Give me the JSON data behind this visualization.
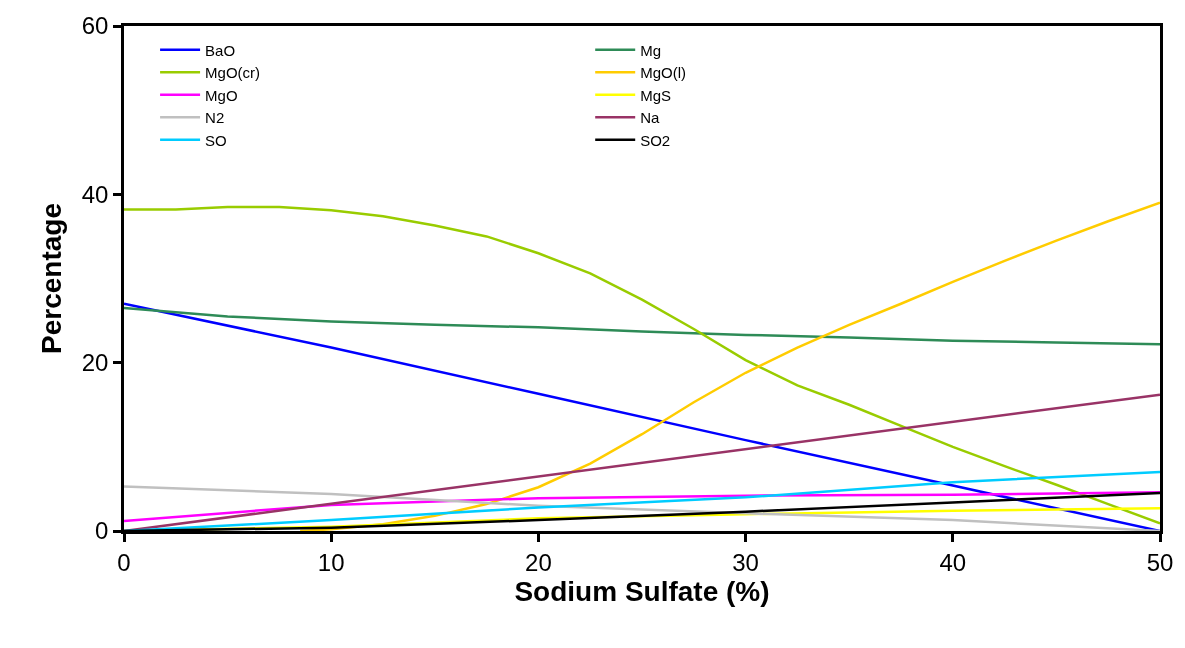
{
  "chart_data": {
    "type": "line",
    "xlabel": "Sodium Sulfate (%)",
    "ylabel": "Percentage",
    "xlim": [
      0,
      50
    ],
    "xticks": [
      0,
      10,
      20,
      30,
      40,
      50
    ],
    "ylim": [
      0,
      60
    ],
    "yticks": [
      0,
      20,
      40,
      60
    ],
    "grid": false,
    "legend": "top left",
    "marker": "none",
    "line_style": "solid",
    "series": [
      {
        "name": "BaO",
        "color": "#0000ff",
        "x": [
          0,
          10,
          20,
          30,
          40,
          50
        ],
        "values": [
          27,
          21.8,
          16.3,
          10.8,
          5.4,
          0
        ]
      },
      {
        "name": "Mg",
        "color": "#2e8b57",
        "x": [
          0,
          5,
          10,
          15,
          20,
          25,
          30,
          35,
          40,
          45,
          50
        ],
        "values": [
          26.5,
          25.5,
          24.9,
          24.5,
          24.2,
          23.7,
          23.3,
          23,
          22.6,
          22.4,
          22.2
        ]
      },
      {
        "name": "MgO(cr)",
        "color": "#99cc00",
        "x": [
          0,
          2.5,
          5,
          7.5,
          10,
          12.5,
          15,
          17.5,
          20,
          22.5,
          25,
          27.5,
          30,
          32.5,
          35,
          37.5,
          40,
          42.5,
          45,
          47.5,
          50
        ],
        "values": [
          38.2,
          38.2,
          38.5,
          38.5,
          38.1,
          37.4,
          36.3,
          35,
          33,
          30.6,
          27.5,
          24,
          20.3,
          17.3,
          15,
          12.5,
          10,
          7.7,
          5.5,
          3.2,
          0.9
        ]
      },
      {
        "name": "MgO(l)",
        "color": "#ffcc00",
        "x": [
          8.5,
          10,
          12.5,
          15,
          17.5,
          20,
          22.5,
          25,
          27.5,
          30,
          32.5,
          35,
          37.5,
          40,
          42.5,
          45,
          47.5,
          50
        ],
        "values": [
          0,
          0.2,
          0.8,
          1.8,
          3.2,
          5.2,
          8,
          11.5,
          15.3,
          18.8,
          21.8,
          24.5,
          27,
          29.6,
          32.1,
          34.5,
          36.8,
          39
        ]
      },
      {
        "name": "MgO",
        "color": "#ff00ff",
        "x": [
          0,
          10,
          20,
          30,
          40,
          50
        ],
        "values": [
          1.2,
          3.1,
          3.9,
          4.2,
          4.3,
          4.6
        ]
      },
      {
        "name": "MgS",
        "color": "#ffff00",
        "x": [
          0,
          10,
          20,
          30,
          40,
          50
        ],
        "values": [
          0,
          0.5,
          1.5,
          2.0,
          2.4,
          2.7
        ]
      },
      {
        "name": "N2",
        "color": "#c0c0c0",
        "x": [
          0,
          10,
          20,
          30,
          40,
          50
        ],
        "values": [
          5.3,
          4.4,
          3,
          2.1,
          1.3,
          0
        ]
      },
      {
        "name": "Na",
        "color": "#993366",
        "x": [
          0,
          50
        ],
        "values": [
          0,
          16.2
        ]
      },
      {
        "name": "SO",
        "color": "#00ccff",
        "x": [
          0,
          10,
          20,
          30,
          40,
          50
        ],
        "values": [
          0,
          1.3,
          2.8,
          4,
          5.8,
          7
        ]
      },
      {
        "name": "SO2",
        "color": "#000000",
        "x": [
          0,
          10,
          20,
          30,
          40,
          50
        ],
        "values": [
          0,
          0.4,
          1.3,
          2.3,
          3.4,
          4.5
        ]
      }
    ]
  }
}
